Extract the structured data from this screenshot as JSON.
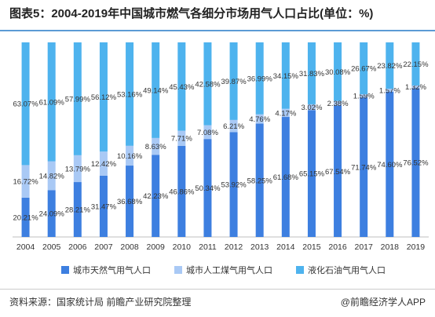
{
  "header": {
    "title": "图表5：2004-2019年中国城市燃气各细分市场用气人口占比(单位：%)"
  },
  "footer": {
    "source": "资料来源：国家统计局 前瞻产业研究院整理",
    "brand": "@前瞻经济学人APP"
  },
  "colors": {
    "natural_gas": "#3d7fe0",
    "coal_gas": "#a9c9f5",
    "lpg": "#4eb3ee"
  },
  "chart_data": {
    "type": "bar",
    "stacked": true,
    "categories": [
      "2004",
      "2005",
      "2006",
      "2007",
      "2008",
      "2009",
      "2010",
      "2011",
      "2012",
      "2013",
      "2014",
      "2015",
      "2016",
      "2017",
      "2018",
      "2019"
    ],
    "series": [
      {
        "name": "城市天然气用气人口",
        "values": [
          20.21,
          24.09,
          28.21,
          31.47,
          36.68,
          42.23,
          46.86,
          50.34,
          53.92,
          58.25,
          61.68,
          65.15,
          67.54,
          71.74,
          74.6,
          76.52
        ],
        "labels": [
          "20.21%",
          "24.09%",
          "28.21%",
          "31.47%",
          "36.68%",
          "42.23%",
          "46.86%",
          "50.34%",
          "53.92%",
          "58.25%",
          "61.68%",
          "65.15%",
          "67.54%",
          "71.74%",
          "74.60%",
          "76.52%"
        ]
      },
      {
        "name": "城市人工煤气用气人口",
        "values": [
          16.72,
          14.82,
          13.79,
          12.42,
          10.16,
          8.63,
          7.71,
          7.08,
          6.21,
          4.76,
          4.17,
          3.02,
          2.38,
          1.59,
          1.57,
          1.32
        ],
        "labels": [
          "16.72%",
          "14.82%",
          "13.79%",
          "12.42%",
          "10.16%",
          "8.63%",
          "7.71%",
          "7.08%",
          "6.21%",
          "4.76%",
          "4.17%",
          "3.02%",
          "2.38%",
          "1.59%",
          "1.57%",
          "1.32%"
        ]
      },
      {
        "name": "液化石油气用气人口",
        "values": [
          63.07,
          61.09,
          57.99,
          56.12,
          53.16,
          49.14,
          45.43,
          42.58,
          39.87,
          36.99,
          34.15,
          31.83,
          30.08,
          26.67,
          23.82,
          22.15
        ],
        "labels": [
          "63.07%",
          "61.09%",
          "57.99%",
          "56.12%",
          "53.16%",
          "49.14%",
          "45.43%",
          "42.58%",
          "39.87%",
          "36.99%",
          "34.15%",
          "31.83%",
          "30.08%",
          "26.67%",
          "23.82%",
          "22.15%"
        ]
      }
    ],
    "ylim": [
      0,
      100
    ],
    "legend_position": "bottom"
  }
}
